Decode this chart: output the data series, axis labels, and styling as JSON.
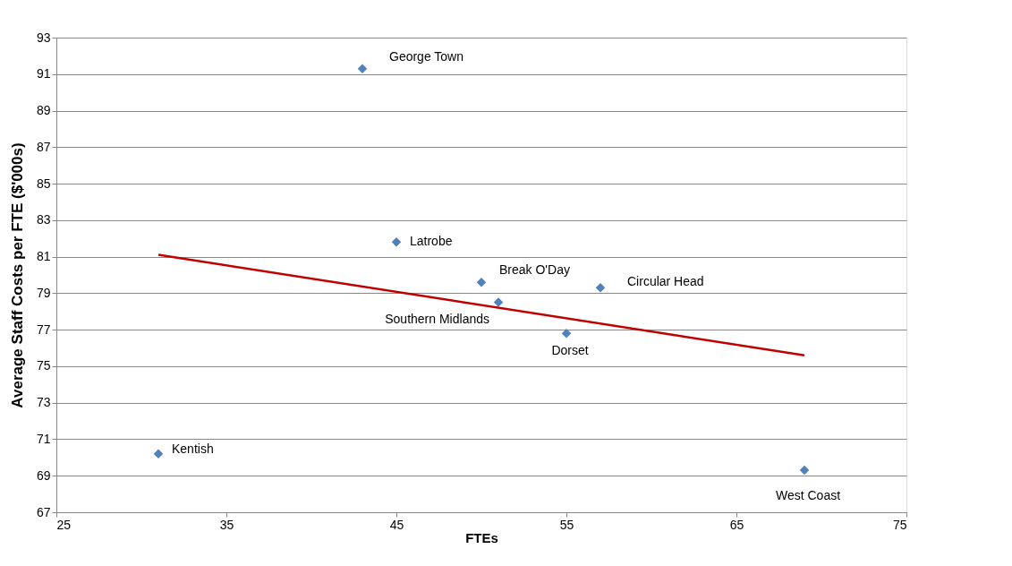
{
  "chart_data": {
    "type": "scatter",
    "xlabel": "FTEs",
    "ylabel": "Average Staff Costs per FTE ($'000s)",
    "xlim": [
      25,
      75
    ],
    "xticks": [
      25,
      35,
      45,
      55,
      65,
      75
    ],
    "ylim": [
      67,
      93
    ],
    "yticks": [
      67,
      69,
      71,
      73,
      75,
      77,
      79,
      81,
      83,
      85,
      87,
      89,
      91,
      93
    ],
    "grid": "y",
    "series": [
      {
        "color": "#4f81bd",
        "marker": "diamond",
        "x": [
          43,
          45,
          50,
          51,
          57,
          55,
          31,
          69
        ],
        "values": [
          91.3,
          81.8,
          79.6,
          78.5,
          79.3,
          76.8,
          70.2,
          69.3
        ]
      },
      {
        "type": "line",
        "color": "#c00000",
        "x": [
          31,
          69
        ],
        "values": [
          81.1,
          75.6
        ],
        "marker": "none",
        "line_style": "solid"
      }
    ],
    "annotations": [
      {
        "text": "George Town",
        "x": 43,
        "y": 91.3
      },
      {
        "text": "Latrobe",
        "x": 45,
        "y": 81.8
      },
      {
        "text": "Break O'Day",
        "x": 50,
        "y": 79.6
      },
      {
        "text": "Southern Midlands",
        "x": 51,
        "y": 78.5
      },
      {
        "text": "Circular Head",
        "x": 57,
        "y": 79.3
      },
      {
        "text": "Dorset",
        "x": 55,
        "y": 76.8
      },
      {
        "text": "Kentish",
        "x": 31,
        "y": 70.2
      },
      {
        "text": "West Coast",
        "x": 69,
        "y": 69.3
      }
    ]
  }
}
